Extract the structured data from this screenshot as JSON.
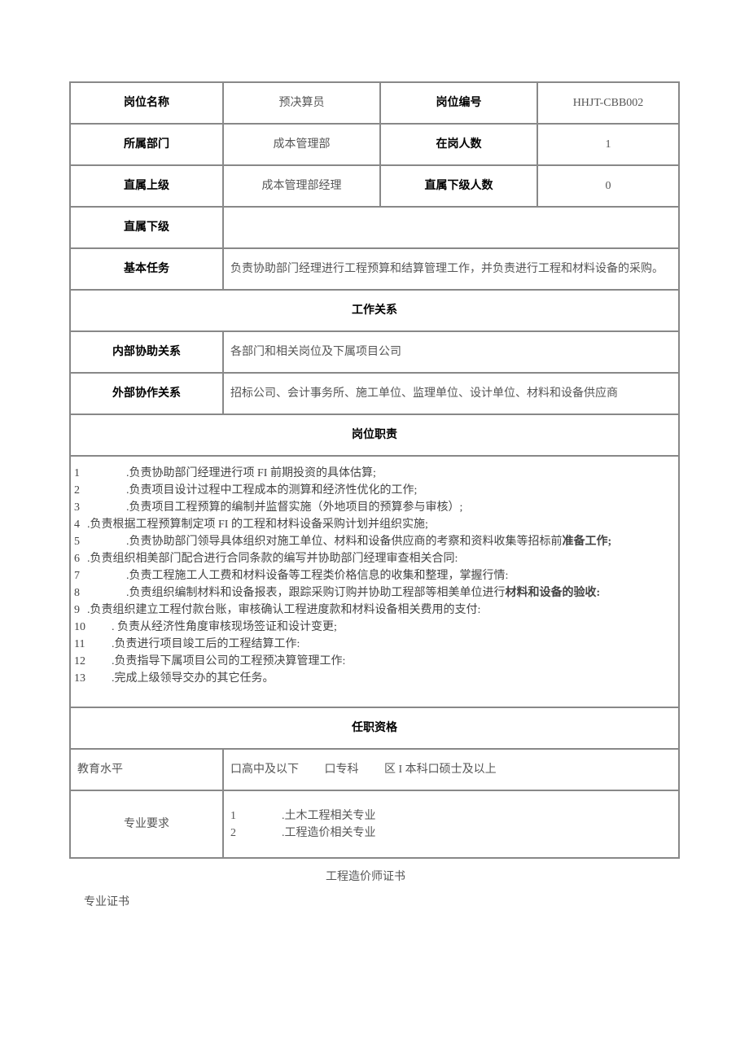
{
  "labels": {
    "position_name": "岗位名称",
    "position_code": "岗位编号",
    "department": "所属部门",
    "headcount": "在岗人数",
    "supervisor": "直属上级",
    "subordinate_count": "直属下级人数",
    "subordinate": "直属下级",
    "basic_task": "基本任务",
    "work_relations": "工作关系",
    "internal_rel": "内部协助关系",
    "external_rel": "外部协作关系",
    "duties": "岗位职责",
    "qualifications": "任职资格",
    "education": "教育水平",
    "major_req": "专业要求",
    "cert": "专业证书"
  },
  "values": {
    "position_name": "预决算员",
    "position_code": "HHJT-CBB002",
    "department": "成本管理部",
    "headcount": "1",
    "supervisor": "成本管理部经理",
    "subordinate_count": "0",
    "subordinate": "",
    "basic_task": "负责协助部门经理进行工程预算和结算管理工作，并负责进行工程和材料设备的采购。",
    "internal_rel": "各部门和相关岗位及下属项目公司",
    "external_rel": "招标公司、会计事务所、施工单位、监理单位、设计单位、材料和设备供应商"
  },
  "duties": [
    {
      "n": "1",
      "indent": "wide",
      "text": ".负责协助部门经理进行项 FI 前期投资的具体估算;"
    },
    {
      "n": "2",
      "indent": "wide",
      "text": ".负责项目设计过程中工程成本的测算和经济性优化的工作;"
    },
    {
      "n": "3",
      "indent": "wide",
      "text": ".负责项目工程预算的编制并监督实施（外地项目的预算参与审核）;"
    },
    {
      "n": "4",
      "indent": "none",
      "text": ".负责根据工程预算制定项 FI 的工程和材料设备采购计划并组织实施;"
    },
    {
      "n": "5",
      "indent": "wide",
      "text": ".负责协助部门领导具体组织对施工单位、材料和设备供应商的考察和资料收集等招标前",
      "tail": "准备工作;"
    },
    {
      "n": "6",
      "indent": "none",
      "text": ".负责组织相美部门配合进行合同条款的编写并协助部门经理审查相关合同:"
    },
    {
      "n": "7",
      "indent": "wide",
      "text": ".负责工程施工人工费和材料设备等工程类价格信息的收集和整理，掌握行情:"
    },
    {
      "n": "8",
      "indent": "wide",
      "text": ".负责组织编制材料和设备报表，跟踪采购订购并协助工程部等相美单位进行",
      "tail": "材料和设备的验收:"
    },
    {
      "n": "9",
      "indent": "none",
      "text": ".负责组织建立工程付款台账，审核确认工程进度款和材料设备相关费用的支付:"
    },
    {
      "n": "10",
      "indent": "mid",
      "text": ". 负责从经济性角度审核现场签证和设计变更;"
    },
    {
      "n": "11",
      "indent": "mid",
      "text": ".负责进行项目竣工后的工程结算工作:"
    },
    {
      "n": "12",
      "indent": "mid",
      "text": ".负责指导下属项目公司的工程预决算管理工作:"
    },
    {
      "n": "13",
      "indent": "mid",
      "text": ".完成上级领导交办的其它任务。"
    }
  ],
  "education_options": {
    "o1": "口高中及以下",
    "o2": "口专科",
    "o3": "区 I 本科口硕士及以上"
  },
  "major_req_lines": {
    "l1n": "1",
    "l1t": ".土木工程相关专业",
    "l2n": "2",
    "l2t": ".工程造价相关专业"
  },
  "cert_value": "工程造价师证书"
}
